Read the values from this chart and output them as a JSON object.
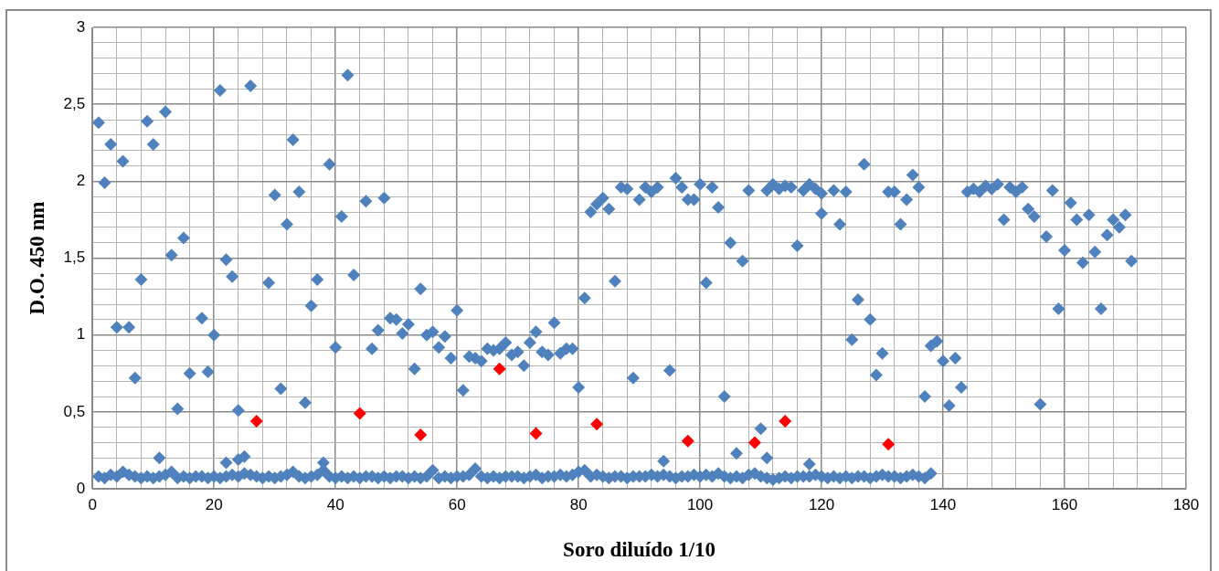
{
  "chart_data": {
    "type": "scatter",
    "xlabel": "Soro diluído 1/10",
    "ylabel": "D.O. 450 nm",
    "marker": "diamond",
    "grid": true,
    "legend": false,
    "xlim": [
      0,
      180
    ],
    "xticks": [
      0,
      {
        "value": 4,
        "label": null
      },
      {
        "value": 8,
        "label": null
      },
      {
        "value": 12,
        "label": null
      },
      {
        "value": 16,
        "label": null
      },
      20,
      {
        "value": 24,
        "label": null
      },
      {
        "value": 28,
        "label": null
      },
      {
        "value": 32,
        "label": null
      },
      {
        "value": 36,
        "label": null
      },
      40,
      {
        "value": 44,
        "label": null
      },
      {
        "value": 48,
        "label": null
      },
      {
        "value": 52,
        "label": null
      },
      {
        "value": 56,
        "label": null
      },
      60,
      {
        "value": 64,
        "label": null
      },
      {
        "value": 68,
        "label": null
      },
      {
        "value": 72,
        "label": null
      },
      {
        "value": 76,
        "label": null
      },
      80,
      {
        "value": 84,
        "label": null
      },
      {
        "value": 88,
        "label": null
      },
      {
        "value": 92,
        "label": null
      },
      {
        "value": 96,
        "label": null
      },
      100,
      {
        "value": 104,
        "label": null
      },
      {
        "value": 108,
        "label": null
      },
      {
        "value": 112,
        "label": null
      },
      {
        "value": 116,
        "label": null
      },
      120,
      {
        "value": 124,
        "label": null
      },
      {
        "value": 128,
        "label": null
      },
      {
        "value": 132,
        "label": null
      },
      {
        "value": 136,
        "label": null
      },
      140,
      {
        "value": 144,
        "label": null
      },
      {
        "value": 148,
        "label": null
      },
      {
        "value": 152,
        "label": null
      },
      {
        "value": 156,
        "label": null
      },
      160,
      {
        "value": 164,
        "label": null
      },
      {
        "value": 168,
        "label": null
      },
      {
        "value": 172,
        "label": null
      },
      {
        "value": 176,
        "label": null
      },
      180
    ],
    "ylim": [
      0,
      3
    ],
    "yticks": [
      0,
      {
        "value": 0.1,
        "label": null
      },
      {
        "value": 0.2,
        "label": null
      },
      {
        "value": 0.3,
        "label": null
      },
      {
        "value": 0.4,
        "label": null
      },
      {
        "value": 0.5,
        "label": "0,5"
      },
      {
        "value": 0.6,
        "label": null
      },
      {
        "value": 0.7,
        "label": null
      },
      {
        "value": 0.8,
        "label": null
      },
      {
        "value": 0.9,
        "label": null
      },
      1,
      {
        "value": 1.1,
        "label": null
      },
      {
        "value": 1.2,
        "label": null
      },
      {
        "value": 1.3,
        "label": null
      },
      {
        "value": 1.4,
        "label": null
      },
      {
        "value": 1.5,
        "label": "1,5"
      },
      {
        "value": 1.6,
        "label": null
      },
      {
        "value": 1.7,
        "label": null
      },
      {
        "value": 1.8,
        "label": null
      },
      {
        "value": 1.9,
        "label": null
      },
      2,
      {
        "value": 2.1,
        "label": null
      },
      {
        "value": 2.2,
        "label": null
      },
      {
        "value": 2.3,
        "label": null
      },
      {
        "value": 2.4,
        "label": null
      },
      {
        "value": 2.5,
        "label": "2,5"
      },
      {
        "value": 2.6,
        "label": null
      },
      {
        "value": 2.7,
        "label": null
      },
      {
        "value": 2.8,
        "label": null
      },
      {
        "value": 2.9,
        "label": null
      },
      3
    ],
    "series": [
      {
        "color": "#4f81bd",
        "x": [
          1,
          2,
          3,
          4,
          5,
          6,
          7,
          8,
          9,
          10,
          11,
          12,
          13,
          14,
          15,
          16,
          18,
          19,
          20,
          21,
          22,
          22,
          23,
          24,
          24,
          25,
          26,
          29,
          30,
          31,
          32,
          33,
          34,
          35,
          36,
          37,
          38,
          39,
          40,
          41,
          42,
          43,
          45,
          46,
          47,
          48,
          49,
          50,
          51,
          52,
          53,
          54,
          55,
          56,
          57,
          58,
          59,
          60,
          61,
          62,
          63,
          64,
          65,
          66,
          67,
          68,
          69,
          70,
          71,
          72,
          73,
          74,
          75,
          76,
          77,
          78,
          79,
          80,
          81,
          82,
          83,
          84,
          85,
          86,
          87,
          88,
          89,
          90,
          91,
          92,
          93,
          94,
          95,
          96,
          97,
          98,
          99,
          100,
          101,
          102,
          103,
          104,
          105,
          106,
          107,
          108,
          110,
          111,
          111,
          112,
          113,
          114,
          115,
          116,
          117,
          118,
          118,
          119,
          120,
          120,
          122,
          123,
          124,
          125,
          126,
          127,
          128,
          129,
          130,
          131,
          132,
          133,
          134,
          135,
          136,
          137,
          138,
          139,
          140,
          141,
          142,
          143,
          144,
          145,
          146,
          147,
          148,
          149,
          150,
          151,
          152,
          153,
          154,
          155,
          156,
          157,
          158,
          159,
          160,
          161,
          162,
          163,
          164,
          165,
          166,
          167,
          168,
          169,
          170,
          171
        ],
        "values": [
          2.38,
          1.99,
          2.24,
          1.05,
          2.13,
          1.05,
          0.72,
          1.36,
          2.39,
          2.24,
          0.2,
          2.45,
          1.52,
          0.52,
          1.63,
          0.75,
          1.11,
          0.76,
          1.0,
          2.59,
          1.49,
          0.17,
          1.38,
          0.51,
          0.19,
          0.21,
          2.62,
          1.34,
          1.91,
          0.65,
          1.72,
          2.27,
          1.93,
          0.56,
          1.19,
          1.36,
          0.17,
          2.11,
          0.92,
          1.77,
          2.69,
          1.39,
          1.87,
          0.91,
          1.03,
          1.89,
          1.11,
          1.1,
          1.01,
          1.07,
          0.78,
          1.3,
          1.0,
          1.02,
          0.92,
          0.99,
          0.85,
          1.16,
          0.64,
          0.86,
          0.85,
          0.83,
          0.91,
          0.9,
          0.91,
          0.95,
          0.87,
          0.89,
          0.8,
          0.95,
          1.02,
          0.89,
          0.87,
          1.08,
          0.88,
          0.91,
          0.91,
          0.66,
          1.24,
          1.8,
          1.85,
          1.89,
          1.82,
          1.35,
          1.96,
          1.95,
          0.72,
          1.88,
          1.96,
          1.93,
          1.96,
          0.18,
          0.77,
          2.02,
          1.96,
          1.88,
          1.88,
          1.98,
          1.34,
          1.96,
          1.83,
          0.6,
          1.6,
          0.23,
          1.48,
          1.94,
          0.39,
          0.2,
          1.94,
          1.98,
          1.95,
          1.97,
          1.96,
          1.58,
          1.94,
          1.98,
          0.16,
          1.95,
          1.92,
          1.79,
          1.94,
          1.72,
          1.93,
          0.97,
          1.23,
          2.11,
          1.1,
          0.74,
          0.88,
          1.93,
          1.93,
          1.72,
          1.88,
          2.04,
          1.96,
          0.6,
          0.93,
          0.96,
          0.83,
          0.54,
          0.85,
          0.66,
          1.93,
          1.95,
          1.93,
          1.97,
          1.95,
          1.98,
          1.75,
          1.96,
          1.93,
          1.96,
          1.82,
          1.77,
          0.55,
          1.64,
          1.94,
          1.17,
          1.55,
          1.86,
          1.75,
          1.47,
          1.78,
          1.54,
          1.17,
          1.65,
          1.75,
          1.7,
          1.78,
          1.48
        ]
      },
      {
        "color": "#4f81bd",
        "x": [
          1,
          2,
          3,
          4,
          5,
          6,
          7,
          8,
          9,
          10,
          11,
          12,
          13,
          14,
          15,
          16,
          17,
          18,
          19,
          20,
          21,
          22,
          23,
          24,
          25,
          26,
          27,
          28,
          29,
          30,
          31,
          32,
          33,
          34,
          35,
          36,
          37,
          38,
          39,
          40,
          41,
          42,
          43,
          44,
          45,
          46,
          47,
          48,
          49,
          50,
          51,
          52,
          53,
          54,
          55,
          56,
          57,
          58,
          59,
          60,
          61,
          62,
          63,
          64,
          65,
          66,
          67,
          68,
          69,
          70,
          71,
          72,
          73,
          74,
          75,
          76,
          77,
          78,
          79,
          80,
          81,
          82,
          83,
          84,
          85,
          86,
          87,
          88,
          89,
          90,
          91,
          92,
          93,
          94,
          95,
          96,
          97,
          98,
          99,
          100,
          101,
          102,
          103,
          104,
          105,
          106,
          107,
          108,
          109,
          110,
          111,
          112,
          113,
          114,
          115,
          116,
          117,
          118,
          119,
          120,
          121,
          122,
          123,
          124,
          125,
          126,
          127,
          128,
          129,
          130,
          131,
          132,
          133,
          134,
          135,
          136,
          137,
          138
        ],
        "values": [
          0.08,
          0.07,
          0.09,
          0.08,
          0.11,
          0.09,
          0.08,
          0.07,
          0.08,
          0.07,
          0.08,
          0.09,
          0.11,
          0.07,
          0.08,
          0.07,
          0.08,
          0.08,
          0.07,
          0.08,
          0.07,
          0.08,
          0.09,
          0.08,
          0.1,
          0.09,
          0.08,
          0.07,
          0.08,
          0.07,
          0.08,
          0.09,
          0.11,
          0.08,
          0.07,
          0.08,
          0.09,
          0.12,
          0.08,
          0.07,
          0.08,
          0.07,
          0.08,
          0.07,
          0.08,
          0.08,
          0.07,
          0.08,
          0.07,
          0.08,
          0.08,
          0.07,
          0.08,
          0.07,
          0.08,
          0.12,
          0.07,
          0.08,
          0.07,
          0.08,
          0.08,
          0.09,
          0.13,
          0.08,
          0.07,
          0.08,
          0.07,
          0.08,
          0.08,
          0.08,
          0.07,
          0.08,
          0.09,
          0.07,
          0.08,
          0.08,
          0.09,
          0.08,
          0.09,
          0.11,
          0.12,
          0.08,
          0.09,
          0.08,
          0.07,
          0.08,
          0.08,
          0.07,
          0.08,
          0.08,
          0.08,
          0.09,
          0.08,
          0.09,
          0.08,
          0.07,
          0.08,
          0.08,
          0.09,
          0.08,
          0.09,
          0.08,
          0.1,
          0.08,
          0.07,
          0.08,
          0.07,
          0.09,
          0.1,
          0.08,
          0.07,
          0.06,
          0.07,
          0.08,
          0.07,
          0.08,
          0.08,
          0.08,
          0.09,
          0.08,
          0.07,
          0.08,
          0.07,
          0.08,
          0.07,
          0.08,
          0.08,
          0.07,
          0.08,
          0.09,
          0.08,
          0.08,
          0.07,
          0.08,
          0.09,
          0.08,
          0.07,
          0.1
        ]
      },
      {
        "color": "#ff0000",
        "x": [
          27,
          44,
          54,
          67,
          73,
          83,
          98,
          109,
          114,
          131
        ],
        "values": [
          0.44,
          0.49,
          0.35,
          0.78,
          0.36,
          0.42,
          0.31,
          0.3,
          0.44,
          0.29
        ]
      }
    ]
  }
}
